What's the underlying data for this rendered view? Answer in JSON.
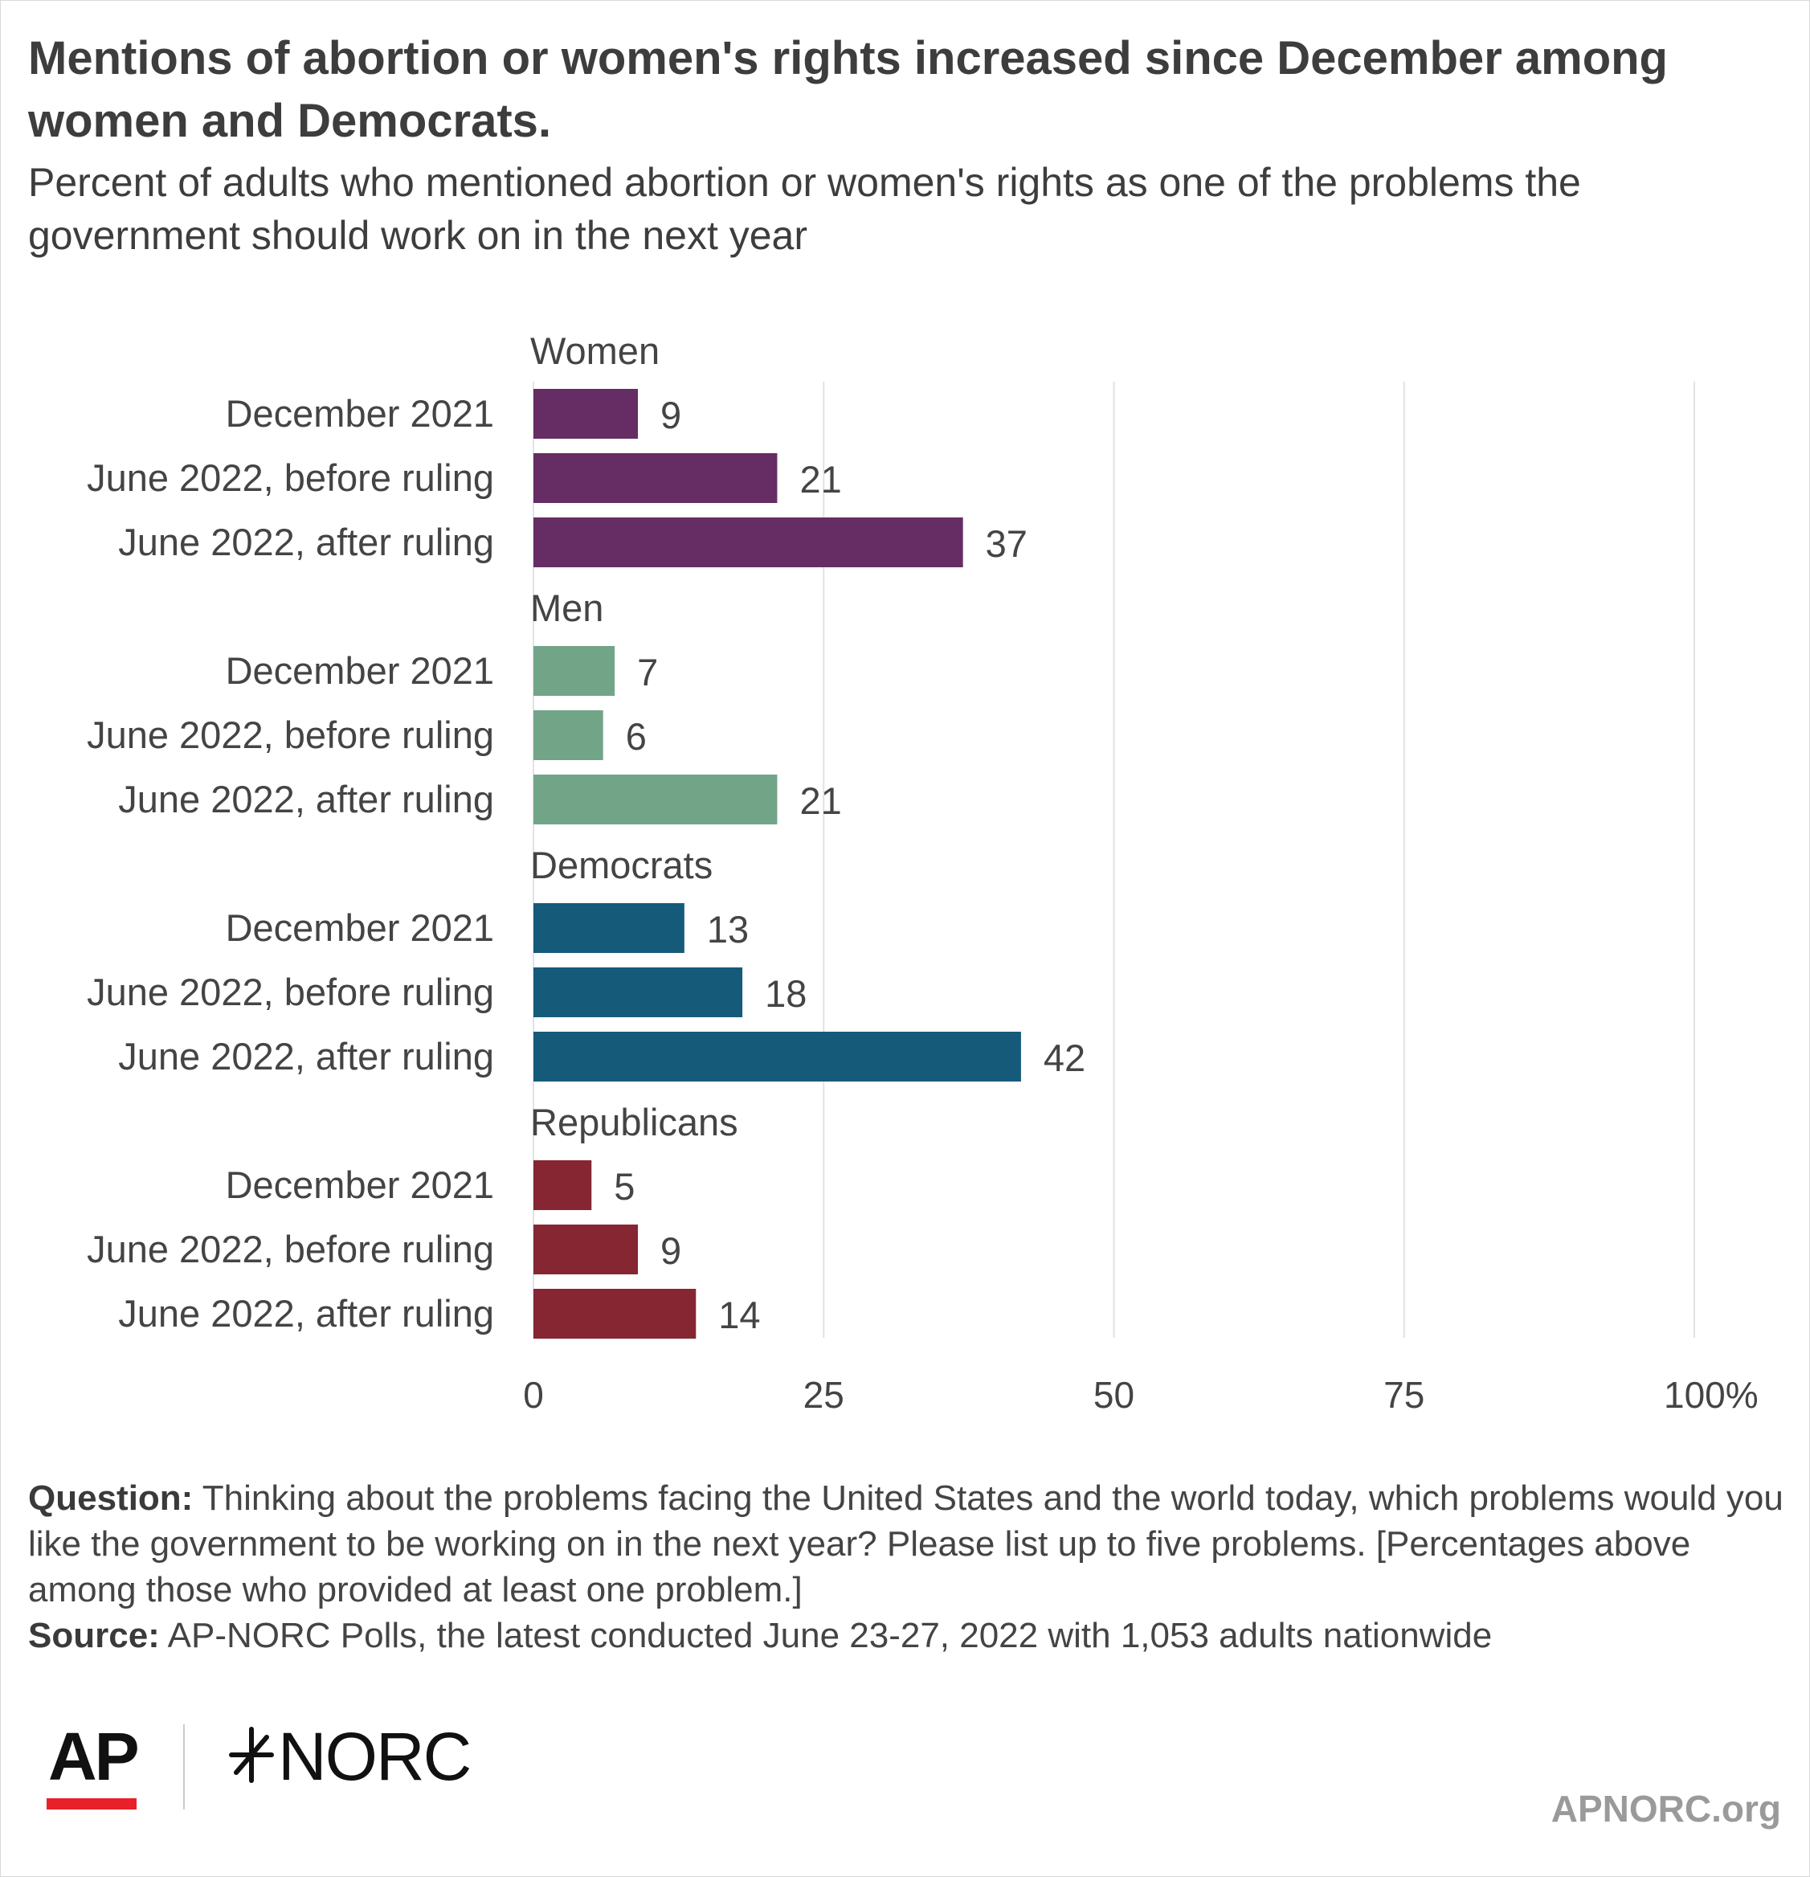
{
  "title": "Mentions of abortion or women's rights increased since December among women and Democrats.",
  "subtitle": "Percent of adults who mentioned abortion or women's rights as one of the problems the government should work on in the next year",
  "chart_data": {
    "type": "bar",
    "orientation": "horizontal",
    "categories": [
      "December 2021",
      "June 2022, before ruling",
      "June 2022, after ruling"
    ],
    "groups": [
      {
        "name": "Women",
        "color": "#652d63",
        "values": [
          9,
          21,
          37
        ]
      },
      {
        "name": "Men",
        "color": "#72a487",
        "values": [
          7,
          6,
          21
        ]
      },
      {
        "name": "Democrats",
        "color": "#165a7a",
        "values": [
          13,
          18,
          42
        ]
      },
      {
        "name": "Republicans",
        "color": "#862633",
        "values": [
          5,
          9,
          14
        ]
      }
    ],
    "xlim": [
      0,
      100
    ],
    "xticks": [
      "0",
      "25",
      "50",
      "75",
      "100%"
    ],
    "grid": true,
    "data_labels": true
  },
  "notes": {
    "question_label": "Question:",
    "question_text": " Thinking about the problems facing the United States and the world today, which problems would you like the government to be working on in the next year? Please list up to five problems. [Percentages above among those who provided at least one problem.]",
    "source_label": "Source:",
    "source_text": " AP-NORC Polls, the latest conducted June 23-27, 2022 with 1,053 adults nationwide"
  },
  "logos": {
    "ap": "AP",
    "norc": "NORC"
  },
  "site": "APNORC.org"
}
